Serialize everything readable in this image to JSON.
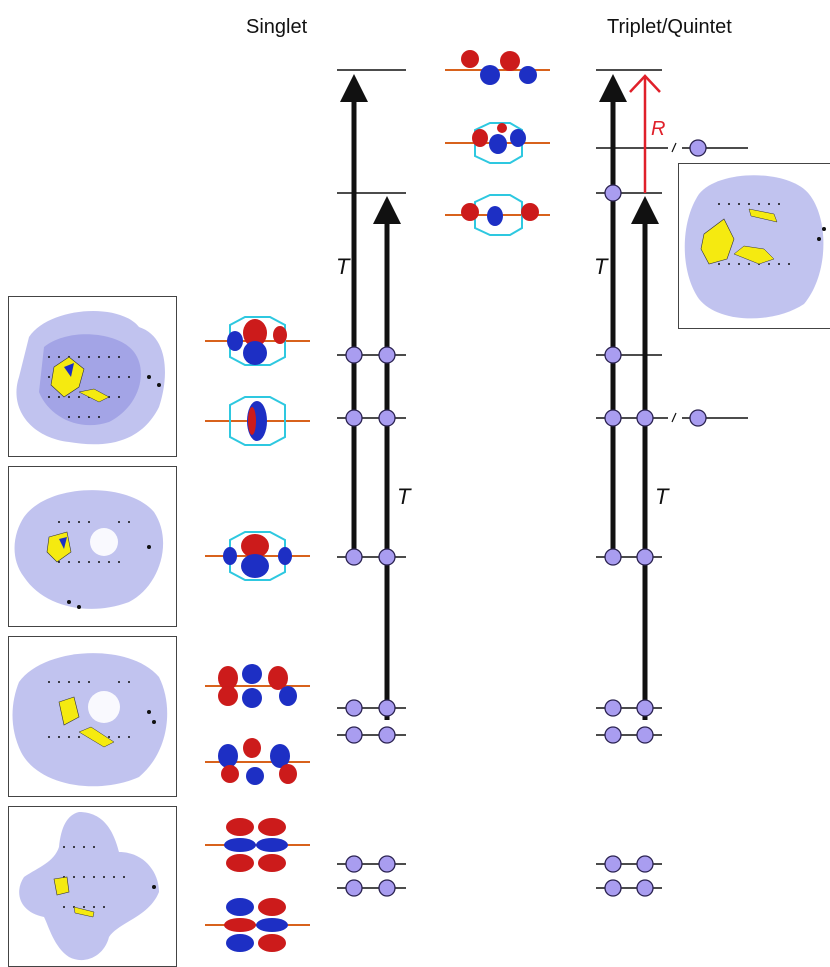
{
  "headers": {
    "singlet": "Singlet",
    "triplet": "Triplet/Quintet"
  },
  "transition_labels": {
    "singlet_outer": "T",
    "singlet_inner": "T",
    "triplet_outer": "T",
    "triplet_inner": "T",
    "triplet_red": "R"
  },
  "colors": {
    "electron_fill": "#a99df0",
    "electron_stroke": "#2a2250",
    "arrow": "#111111",
    "red_arrow": "#e0202a",
    "density_halo": "#b6b8ec",
    "density_core": "#f5ea10",
    "lobe_red": "#cc1b1b",
    "lobe_blue": "#1d2fc4",
    "bond_cyan": "#2ec8e0",
    "bond_orange": "#d8621c"
  },
  "icons": {
    "density_map": "density-map-icon",
    "orbital": "molecular-orbital-icon",
    "electron": "electron-circle-icon"
  }
}
